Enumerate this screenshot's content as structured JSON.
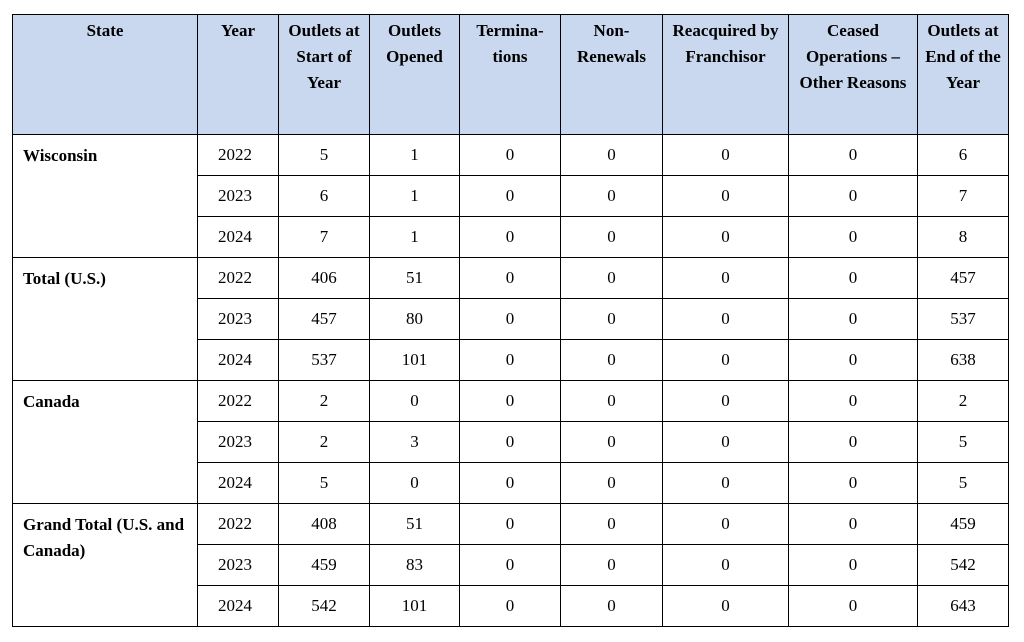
{
  "columns": [
    "State",
    "Year",
    "Outlets at Start of Year",
    "Outlets Opened",
    "Termina-tions",
    "Non-Renewals",
    "Reacquired by Franchisor",
    "Ceased Operations – Other Reasons",
    "Outlets at End of the Year"
  ],
  "groups": [
    {
      "state": "Wisconsin",
      "rows": [
        {
          "year": "2022",
          "start": "5",
          "opened": "1",
          "terminations": "0",
          "non_renewals": "0",
          "reacquired": "0",
          "ceased": "0",
          "end": "6"
        },
        {
          "year": "2023",
          "start": "6",
          "opened": "1",
          "terminations": "0",
          "non_renewals": "0",
          "reacquired": "0",
          "ceased": "0",
          "end": "7"
        },
        {
          "year": "2024",
          "start": "7",
          "opened": "1",
          "terminations": "0",
          "non_renewals": "0",
          "reacquired": "0",
          "ceased": "0",
          "end": "8"
        }
      ]
    },
    {
      "state": "Total (U.S.)",
      "rows": [
        {
          "year": "2022",
          "start": "406",
          "opened": "51",
          "terminations": "0",
          "non_renewals": "0",
          "reacquired": "0",
          "ceased": "0",
          "end": "457"
        },
        {
          "year": "2023",
          "start": "457",
          "opened": "80",
          "terminations": "0",
          "non_renewals": "0",
          "reacquired": "0",
          "ceased": "0",
          "end": "537"
        },
        {
          "year": "2024",
          "start": "537",
          "opened": "101",
          "terminations": "0",
          "non_renewals": "0",
          "reacquired": "0",
          "ceased": "0",
          "end": "638"
        }
      ]
    },
    {
      "state": "Canada",
      "rows": [
        {
          "year": "2022",
          "start": "2",
          "opened": "0",
          "terminations": "0",
          "non_renewals": "0",
          "reacquired": "0",
          "ceased": "0",
          "end": "2"
        },
        {
          "year": "2023",
          "start": "2",
          "opened": "3",
          "terminations": "0",
          "non_renewals": "0",
          "reacquired": "0",
          "ceased": "0",
          "end": "5"
        },
        {
          "year": "2024",
          "start": "5",
          "opened": "0",
          "terminations": "0",
          "non_renewals": "0",
          "reacquired": "0",
          "ceased": "0",
          "end": "5"
        }
      ]
    },
    {
      "state": "Grand Total (U.S. and Canada)",
      "rows": [
        {
          "year": "2022",
          "start": "408",
          "opened": "51",
          "terminations": "0",
          "non_renewals": "0",
          "reacquired": "0",
          "ceased": "0",
          "end": "459"
        },
        {
          "year": "2023",
          "start": "459",
          "opened": "83",
          "terminations": "0",
          "non_renewals": "0",
          "reacquired": "0",
          "ceased": "0",
          "end": "542"
        },
        {
          "year": "2024",
          "start": "542",
          "opened": "101",
          "terminations": "0",
          "non_renewals": "0",
          "reacquired": "0",
          "ceased": "0",
          "end": "643"
        }
      ]
    }
  ],
  "style": {
    "header_bg": "#c9d8ee",
    "border": "#000000"
  }
}
